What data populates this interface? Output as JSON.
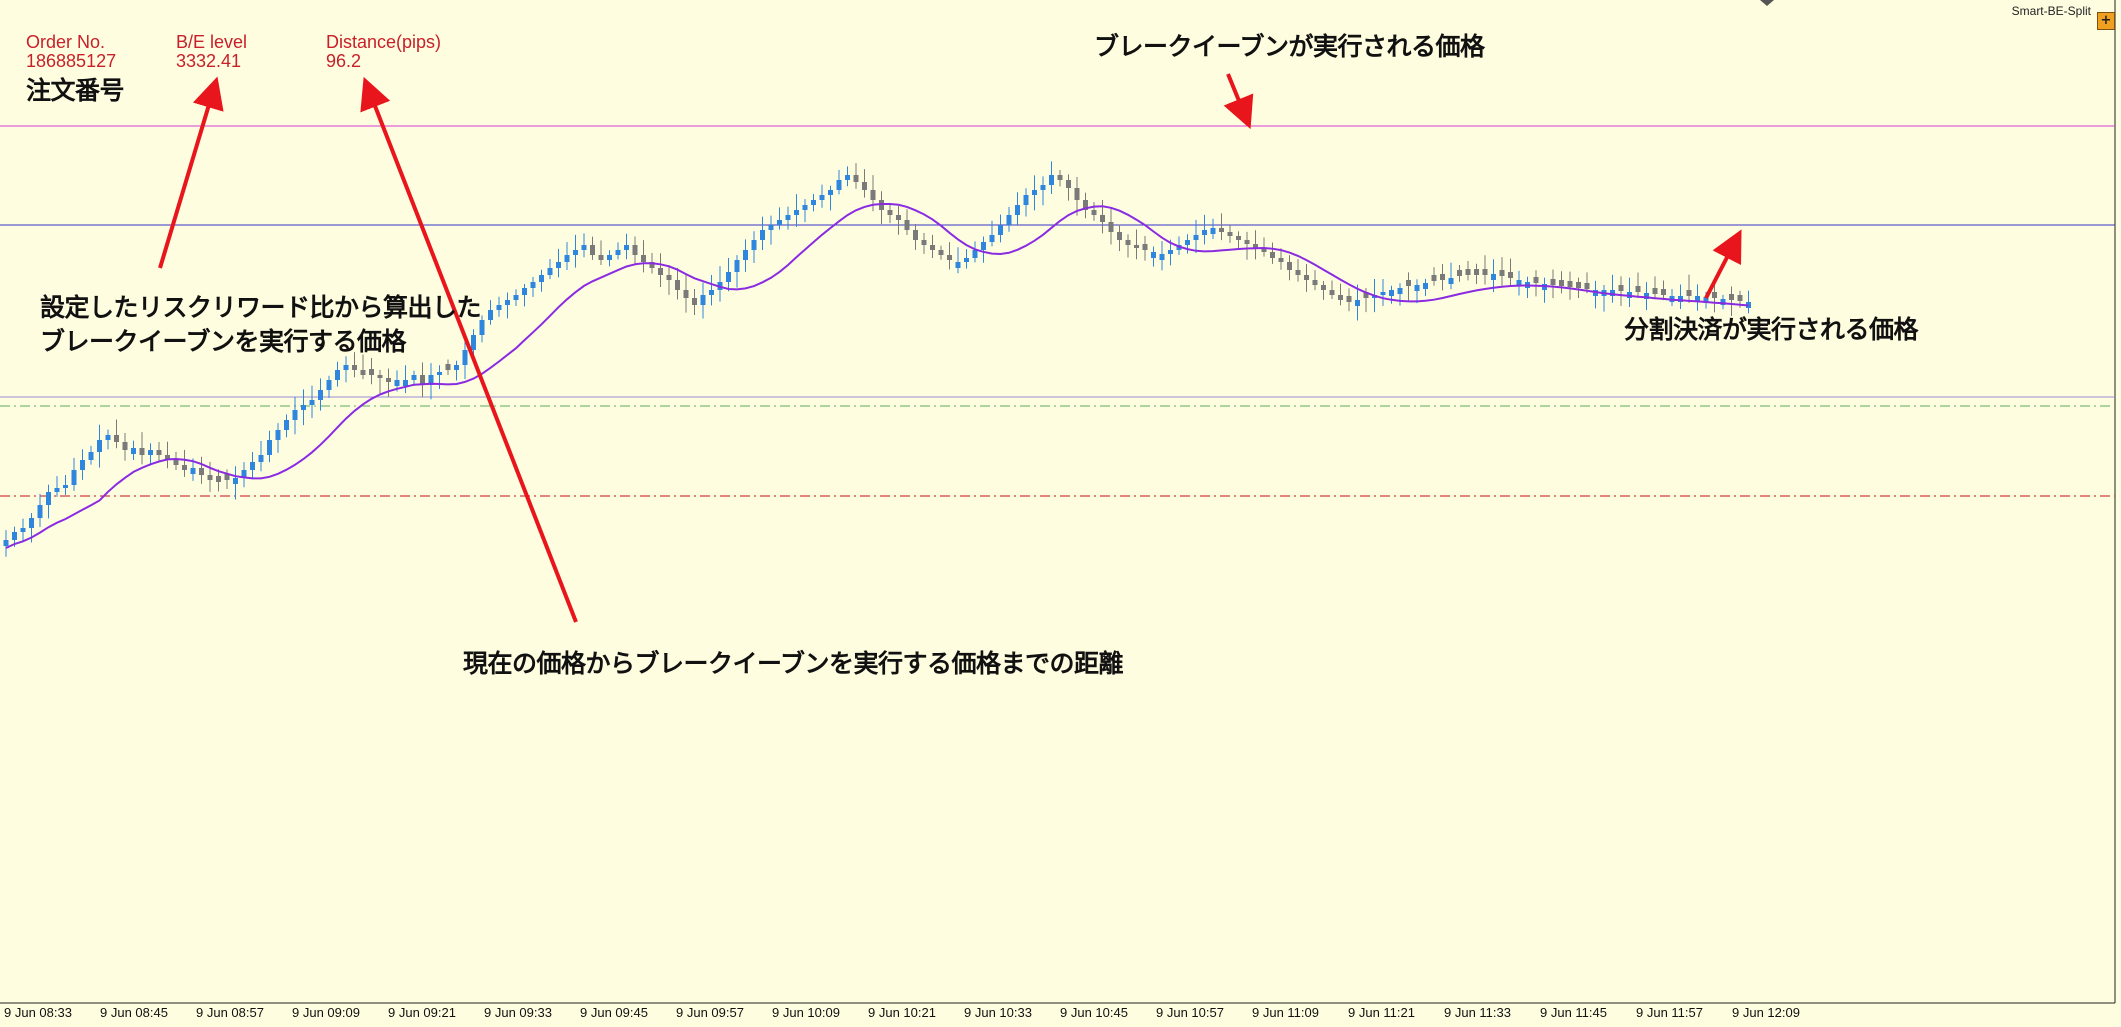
{
  "colors": {
    "background": "#fffde0",
    "bull": "#2e86de",
    "bear": "#7a7a7a",
    "ma": "#8a2be2",
    "annotation_arrow": "#e8161c",
    "info_text": "#c8202a",
    "line_magenta": "#d63bd6",
    "line_blue": "#3535c8",
    "line_current": "#9a8ad6",
    "line_green": "#5aaa5a",
    "line_red": "#d04040"
  },
  "info_panel": {
    "order_label": "Order No.",
    "order_value": "186885127",
    "be_label": "B/E level",
    "be_value": "3332.41",
    "distance_label": "Distance(pips)",
    "distance_value": "96.2"
  },
  "annotations": {
    "order_number": "注文番号",
    "be_price": "ブレークイーブンが実行される価格",
    "rr_line1": "設定したリスクリワード比から算出した",
    "rr_line2": "ブレークイーブンを実行する価格",
    "distance": "現在の価格からブレークイーブンを実行する価格までの距離",
    "split": "分割決済が実行される価格"
  },
  "ea": {
    "name": "Smart-BE-Split",
    "icon": "plus-icon",
    "button_glyph": "+"
  },
  "time_axis": [
    "9 Jun 08:33",
    "9 Jun 08:45",
    "9 Jun 08:57",
    "9 Jun 09:09",
    "9 Jun 09:21",
    "9 Jun 09:33",
    "9 Jun 09:45",
    "9 Jun 09:57",
    "9 Jun 10:09",
    "9 Jun 10:21",
    "9 Jun 10:33",
    "9 Jun 10:45",
    "9 Jun 10:57",
    "9 Jun 11:09",
    "9 Jun 11:21",
    "9 Jun 11:33",
    "9 Jun 11:45",
    "9 Jun 11:57",
    "9 Jun 12:09"
  ],
  "chart_data": {
    "type": "candlestick",
    "lines": [
      "magenta",
      "blue",
      "current",
      "green",
      "red"
    ],
    "closes": [
      540,
      532,
      528,
      518,
      505,
      492,
      488,
      485,
      470,
      460,
      452,
      440,
      435,
      442,
      450,
      448,
      455,
      450,
      455,
      460,
      465,
      470,
      468,
      475,
      480,
      482,
      480,
      478,
      470,
      462,
      455,
      440,
      430,
      420,
      410,
      405,
      400,
      390,
      380,
      370,
      365,
      370,
      375,
      375,
      378,
      382,
      380,
      380,
      375,
      385,
      375,
      372,
      370,
      365,
      350,
      335,
      320,
      310,
      305,
      300,
      295,
      288,
      282,
      275,
      268,
      262,
      255,
      250,
      245,
      255,
      260,
      255,
      250,
      245,
      255,
      262,
      268,
      275,
      280,
      290,
      298,
      305,
      295,
      290,
      282,
      272,
      260,
      250,
      240,
      230,
      225,
      220,
      215,
      210,
      205,
      200,
      195,
      190,
      180,
      175,
      182,
      190,
      200,
      210,
      215,
      220,
      230,
      240,
      245,
      250,
      255,
      260,
      262,
      258,
      250,
      242,
      235,
      225,
      215,
      205,
      195,
      190,
      185,
      175,
      180,
      188,
      200,
      210,
      215,
      222,
      232,
      240,
      245,
      248,
      250,
      252,
      254,
      250,
      245,
      240,
      235,
      230,
      228,
      232,
      236,
      240,
      244,
      248,
      252,
      258,
      262,
      270,
      275,
      280,
      285,
      290,
      295,
      300,
      302,
      300,
      298,
      295,
      292,
      290,
      288,
      286,
      285,
      283,
      281,
      280,
      278,
      276,
      275,
      275,
      275,
      274,
      276,
      278,
      280,
      282,
      283,
      284,
      285,
      286,
      287,
      288,
      289,
      290,
      290,
      290,
      291,
      292,
      292,
      293,
      294,
      295,
      296,
      296,
      296,
      296,
      297,
      298,
      299,
      300,
      301,
      302
    ]
  }
}
